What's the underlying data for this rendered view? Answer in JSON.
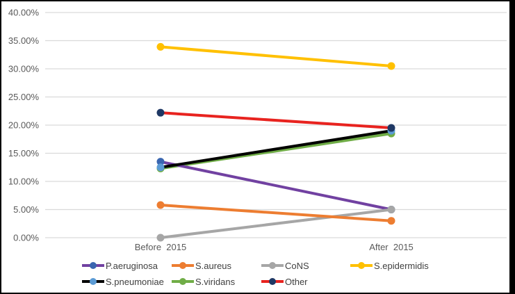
{
  "chart_data": {
    "type": "line",
    "title": "",
    "xlabel": "",
    "ylabel": "",
    "categories": [
      "Before  2015",
      "After  2015"
    ],
    "series": [
      {
        "name": "P.aeruginosa",
        "values": [
          13.5,
          5.0
        ],
        "line_color": "#7141a1",
        "marker_color": "#3a66b0"
      },
      {
        "name": "S.aureus",
        "values": [
          5.8,
          3.0
        ],
        "line_color": "#ed7d31",
        "marker_color": "#ed7d31"
      },
      {
        "name": "CoNS",
        "values": [
          0.0,
          5.0
        ],
        "line_color": "#a6a6a6",
        "marker_color": "#a6a6a6"
      },
      {
        "name": "S.epidermidis",
        "values": [
          33.9,
          30.5
        ],
        "line_color": "#ffc000",
        "marker_color": "#ffc000"
      },
      {
        "name": "S.pneumoniae",
        "values": [
          12.5,
          19.0
        ],
        "line_color": "#000000",
        "marker_color": "#5b9bd5"
      },
      {
        "name": "S.viridans",
        "values": [
          12.3,
          18.5
        ],
        "line_color": "#70ad47",
        "marker_color": "#70ad47"
      },
      {
        "name": "Other",
        "values": [
          22.2,
          19.5
        ],
        "line_color": "#e8231f",
        "marker_color": "#1f3864"
      }
    ],
    "ylim": [
      0,
      40
    ],
    "ytick_step": 5,
    "ytick_labels": [
      "0.00%",
      "5.00%",
      "10.00%",
      "15.00%",
      "20.00%",
      "25.00%",
      "30.00%",
      "35.00%",
      "40.00%"
    ],
    "grid": true,
    "legend_position": "bottom",
    "legend_rows": [
      [
        "P.aeruginosa",
        "S.aureus",
        "CoNS",
        "S.epidermidis"
      ],
      [
        "S.pneumoniae",
        "S.viridans",
        "Other"
      ]
    ]
  },
  "style_colors": {
    "gridline": "#d9d9d9",
    "axis_text": "#595959",
    "legend_text": "#404040",
    "frame": "#000000",
    "background": "#ffffff"
  }
}
